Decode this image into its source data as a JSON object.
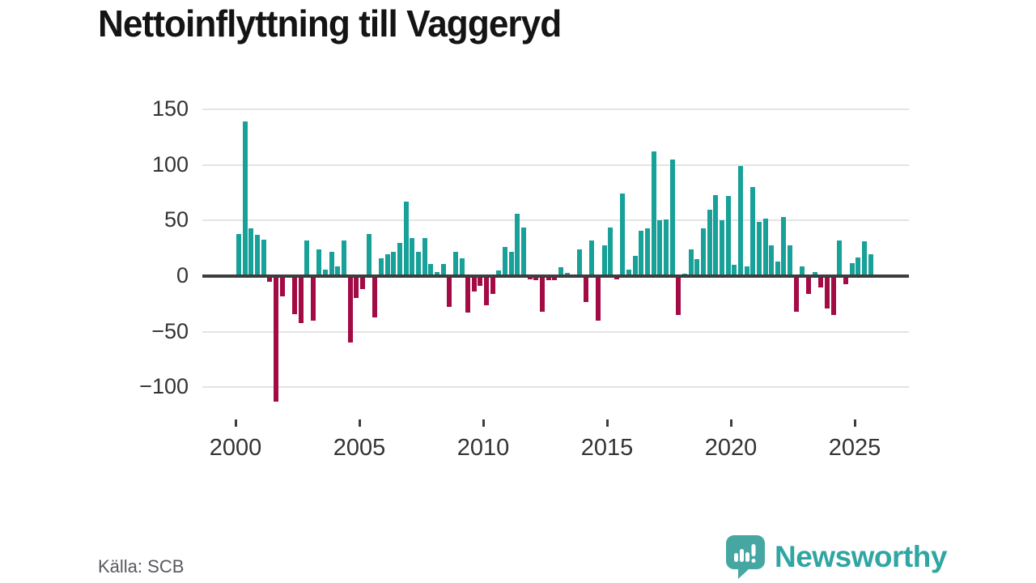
{
  "page": {
    "title": "Nettoinflyttning till Vaggeryd",
    "source": "Källa: SCB",
    "brand_name": "Newsworthy"
  },
  "colors": {
    "bar_positive": "#18a198",
    "bar_negative": "#a30b45",
    "zero_axis": "#3d3d3d",
    "gridline": "#e4e4e4",
    "tick_label": "#333333",
    "title_text": "#141414",
    "source_text": "#57575f",
    "brand_teal": "#2fa6a2",
    "logo_bubble": "#46a7a2"
  },
  "chart_data": {
    "type": "bar",
    "title": "Nettoinflyttning till Vaggeryd",
    "x_frequency": "quarterly",
    "x_start": "2000 Q1",
    "x_end": "2025 Q3",
    "x_tick_labels": [
      "2000",
      "2005",
      "2010",
      "2015",
      "2020",
      "2025"
    ],
    "y_ticks": [
      150,
      100,
      50,
      0,
      -50,
      -100
    ],
    "y_tick_labels": [
      "150",
      "100",
      "50",
      "0",
      "−50",
      "−100"
    ],
    "ylim": [
      -120,
      157
    ],
    "grid": "horizontal",
    "legend": "none",
    "series": [
      {
        "name": "Nettoinflyttning",
        "values": [
          38,
          139,
          43,
          37,
          33,
          -5,
          -113,
          -18,
          0,
          -34,
          -42,
          32,
          -40,
          24,
          6,
          22,
          9,
          32,
          -60,
          -20,
          -12,
          38,
          -37,
          16,
          20,
          22,
          30,
          67,
          34,
          22,
          34,
          11,
          4,
          11,
          -28,
          22,
          16,
          -33,
          -14,
          -9,
          -26,
          -16,
          5,
          26,
          22,
          56,
          44,
          -3,
          -4,
          -32,
          -4,
          -4,
          8,
          3,
          0,
          24,
          -23,
          32,
          -40,
          28,
          44,
          -3,
          74,
          6,
          18,
          41,
          43,
          112,
          50,
          51,
          105,
          -35,
          2,
          24,
          15,
          43,
          60,
          73,
          50,
          72,
          10,
          99,
          9,
          80,
          49,
          52,
          28,
          13,
          53,
          28,
          -32,
          9,
          -16,
          4,
          -10,
          -29,
          -35,
          32,
          -7,
          12,
          17,
          31,
          20
        ]
      }
    ]
  }
}
